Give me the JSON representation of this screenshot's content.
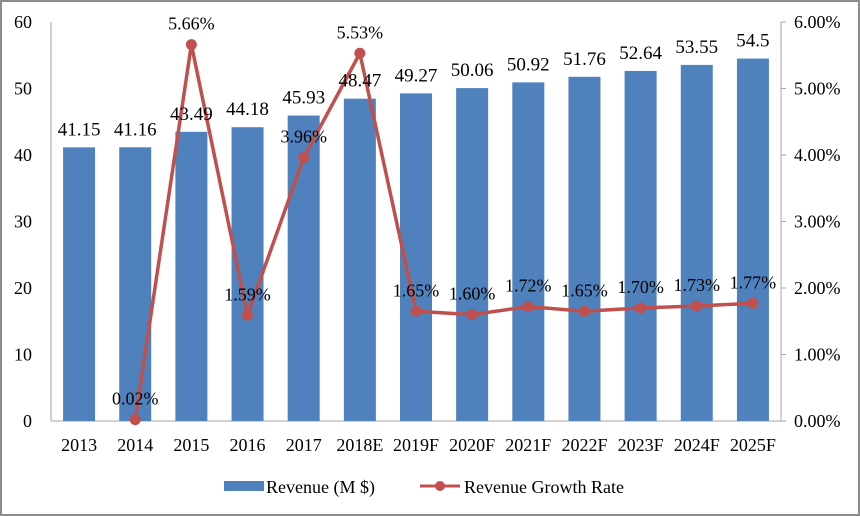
{
  "chart_data": {
    "type": "bar+line",
    "title": "",
    "categories": [
      "2013",
      "2014",
      "2015",
      "2016",
      "2017",
      "2018E",
      "2019F",
      "2020F",
      "2021F",
      "2022F",
      "2023F",
      "2024F",
      "2025F"
    ],
    "series": [
      {
        "name": "Revenue (M $)",
        "type": "bar",
        "axis": "left",
        "color": "#4F81BD",
        "values": [
          41.15,
          41.16,
          43.49,
          44.18,
          45.93,
          48.47,
          49.27,
          50.06,
          50.92,
          51.76,
          52.64,
          53.55,
          54.5
        ],
        "labels": [
          "41.15",
          "41.16",
          "43.49",
          "44.18",
          "45.93",
          "48.47",
          "49.27",
          "50.06",
          "50.92",
          "51.76",
          "52.64",
          "53.55",
          "54.5"
        ]
      },
      {
        "name": "Revenue Growth Rate",
        "type": "line",
        "axis": "right",
        "color": "#C0504D",
        "values": [
          null,
          0.02,
          5.66,
          1.59,
          3.96,
          5.53,
          1.65,
          1.6,
          1.72,
          1.65,
          1.7,
          1.73,
          1.77
        ],
        "labels": [
          null,
          "0.02%",
          "5.66%",
          "1.59%",
          "3.96%",
          "5.53%",
          "1.65%",
          "1.60%",
          "1.72%",
          "1.65%",
          "1.70%",
          "1.73%",
          "1.77%"
        ]
      }
    ],
    "y_left": {
      "min": 0,
      "max": 60,
      "ticks": [
        "0",
        "10",
        "20",
        "30",
        "40",
        "50",
        "60"
      ]
    },
    "y_right": {
      "min": 0,
      "max": 6,
      "ticks": [
        "0.00%",
        "1.00%",
        "2.00%",
        "3.00%",
        "4.00%",
        "5.00%",
        "6.00%"
      ]
    },
    "xlabel": "",
    "ylabel": "",
    "grid": false,
    "legend": "bottom"
  }
}
